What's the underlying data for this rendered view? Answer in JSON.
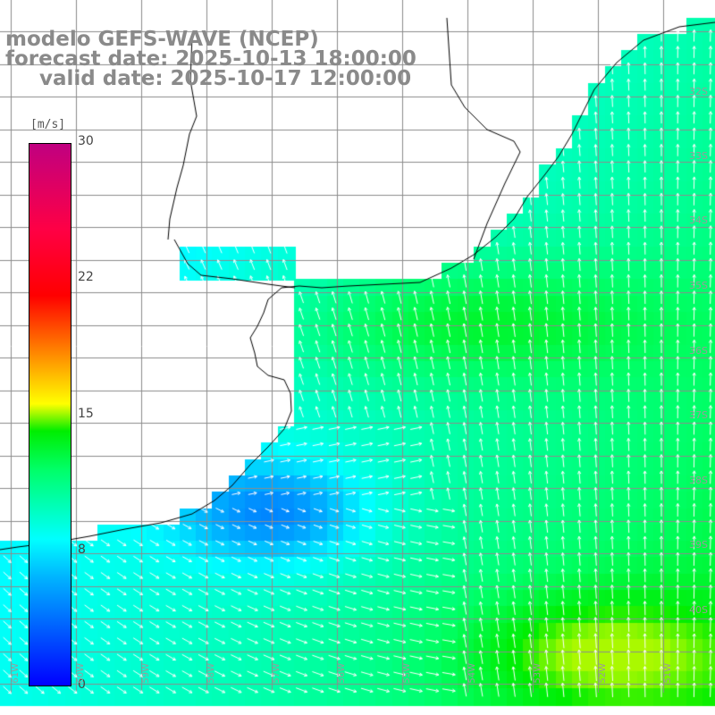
{
  "title": {
    "line1": "modelo GEFS-WAVE (NCEP)",
    "line2": "forecast date: 2025-10-13 18:00:00",
    "line3": "valid date: 2025-10-17 12:00:00"
  },
  "colorbar": {
    "unit": "[m/s]",
    "ticks": [
      {
        "value": "30",
        "pos": 0
      },
      {
        "value": "22",
        "pos": 1
      },
      {
        "value": "15",
        "pos": 2
      },
      {
        "value": "8",
        "pos": 3
      },
      {
        "value": "0",
        "pos": 4
      }
    ]
  },
  "lat_labels": [
    "32S",
    "33S",
    "34S",
    "35S",
    "36S",
    "37S",
    "38S",
    "39S",
    "40S"
  ],
  "lon_labels": [
    "61W",
    "60W",
    "59W",
    "58W",
    "57W",
    "56W",
    "55W",
    "54W",
    "53W",
    "52W",
    "51W"
  ],
  "colors": {
    "weak": "#0044ff",
    "moderate": "#00c8ff",
    "fresh": "#00ee66",
    "land": "#ffffff",
    "grid": "#888888"
  }
}
